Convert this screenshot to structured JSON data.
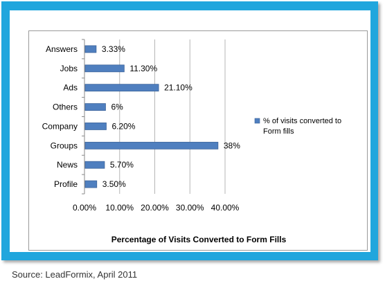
{
  "chart_data": {
    "type": "bar",
    "orientation": "horizontal",
    "title": "Percentage of Visits Converted to Form Fills",
    "categories": [
      "Answers",
      "Jobs",
      "Ads",
      "Others",
      "Company",
      "Groups",
      "News",
      "Profile"
    ],
    "series": [
      {
        "name": "% of visits converted to Form fills",
        "values": [
          3.33,
          11.3,
          21.1,
          6,
          6.2,
          38,
          5.7,
          3.5
        ],
        "data_labels": [
          "3.33%",
          "11.30%",
          "21.10%",
          "6%",
          "6.20%",
          "38%",
          "5.70%",
          "3.50%"
        ]
      }
    ],
    "xlim": [
      0,
      40
    ],
    "x_ticks": [
      0,
      10,
      20,
      30,
      40
    ],
    "x_tick_labels": [
      "0.00%",
      "10.00%",
      "20.00%",
      "30.00%",
      "40.00%"
    ],
    "grid": "vertical",
    "legend_position": "right"
  },
  "colors": {
    "frame": "#20a6dd",
    "bar_fill": "#4f7fbf",
    "bar_stroke": "#3c639a",
    "grid": "#b5b5b5"
  },
  "source": "Source: LeadFormix, April 2011"
}
